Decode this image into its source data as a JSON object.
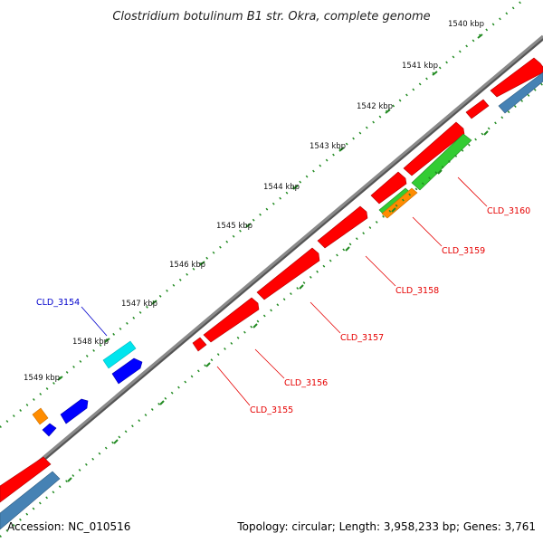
{
  "title": "Clostridium botulinum B1 str. Okra, complete genome",
  "accession": "Accession: NC_010516",
  "topology": "Topology: circular; Length: 3,958,233 bp; Genes: 3,761",
  "ticks": [
    "1540 kbp",
    "1541 kbp",
    "1542 kbp",
    "1543 kbp",
    "1544 kbp",
    "1545 kbp",
    "1546 kbp",
    "1547 kbp",
    "1548 kbp",
    "1549 kbp"
  ],
  "genes": [
    {
      "label": "CLD_3160",
      "color": "#e60000"
    },
    {
      "label": "CLD_3159",
      "color": "#e60000"
    },
    {
      "label": "CLD_3158",
      "color": "#e60000"
    },
    {
      "label": "CLD_3157",
      "color": "#e60000"
    },
    {
      "label": "CLD_3156",
      "color": "#e60000"
    },
    {
      "label": "CLD_3155",
      "color": "#e60000"
    },
    {
      "label": "CLD_3154",
      "color": "#0000cc"
    }
  ],
  "colors": {
    "backbone": "#808080",
    "cds": "#ff0000",
    "rna": "#33cc33",
    "misc": "#ff8c00",
    "trna": "#00e5ee",
    "blue": "#0000ff",
    "steel": "#4682b4",
    "dots": "#228b22"
  }
}
